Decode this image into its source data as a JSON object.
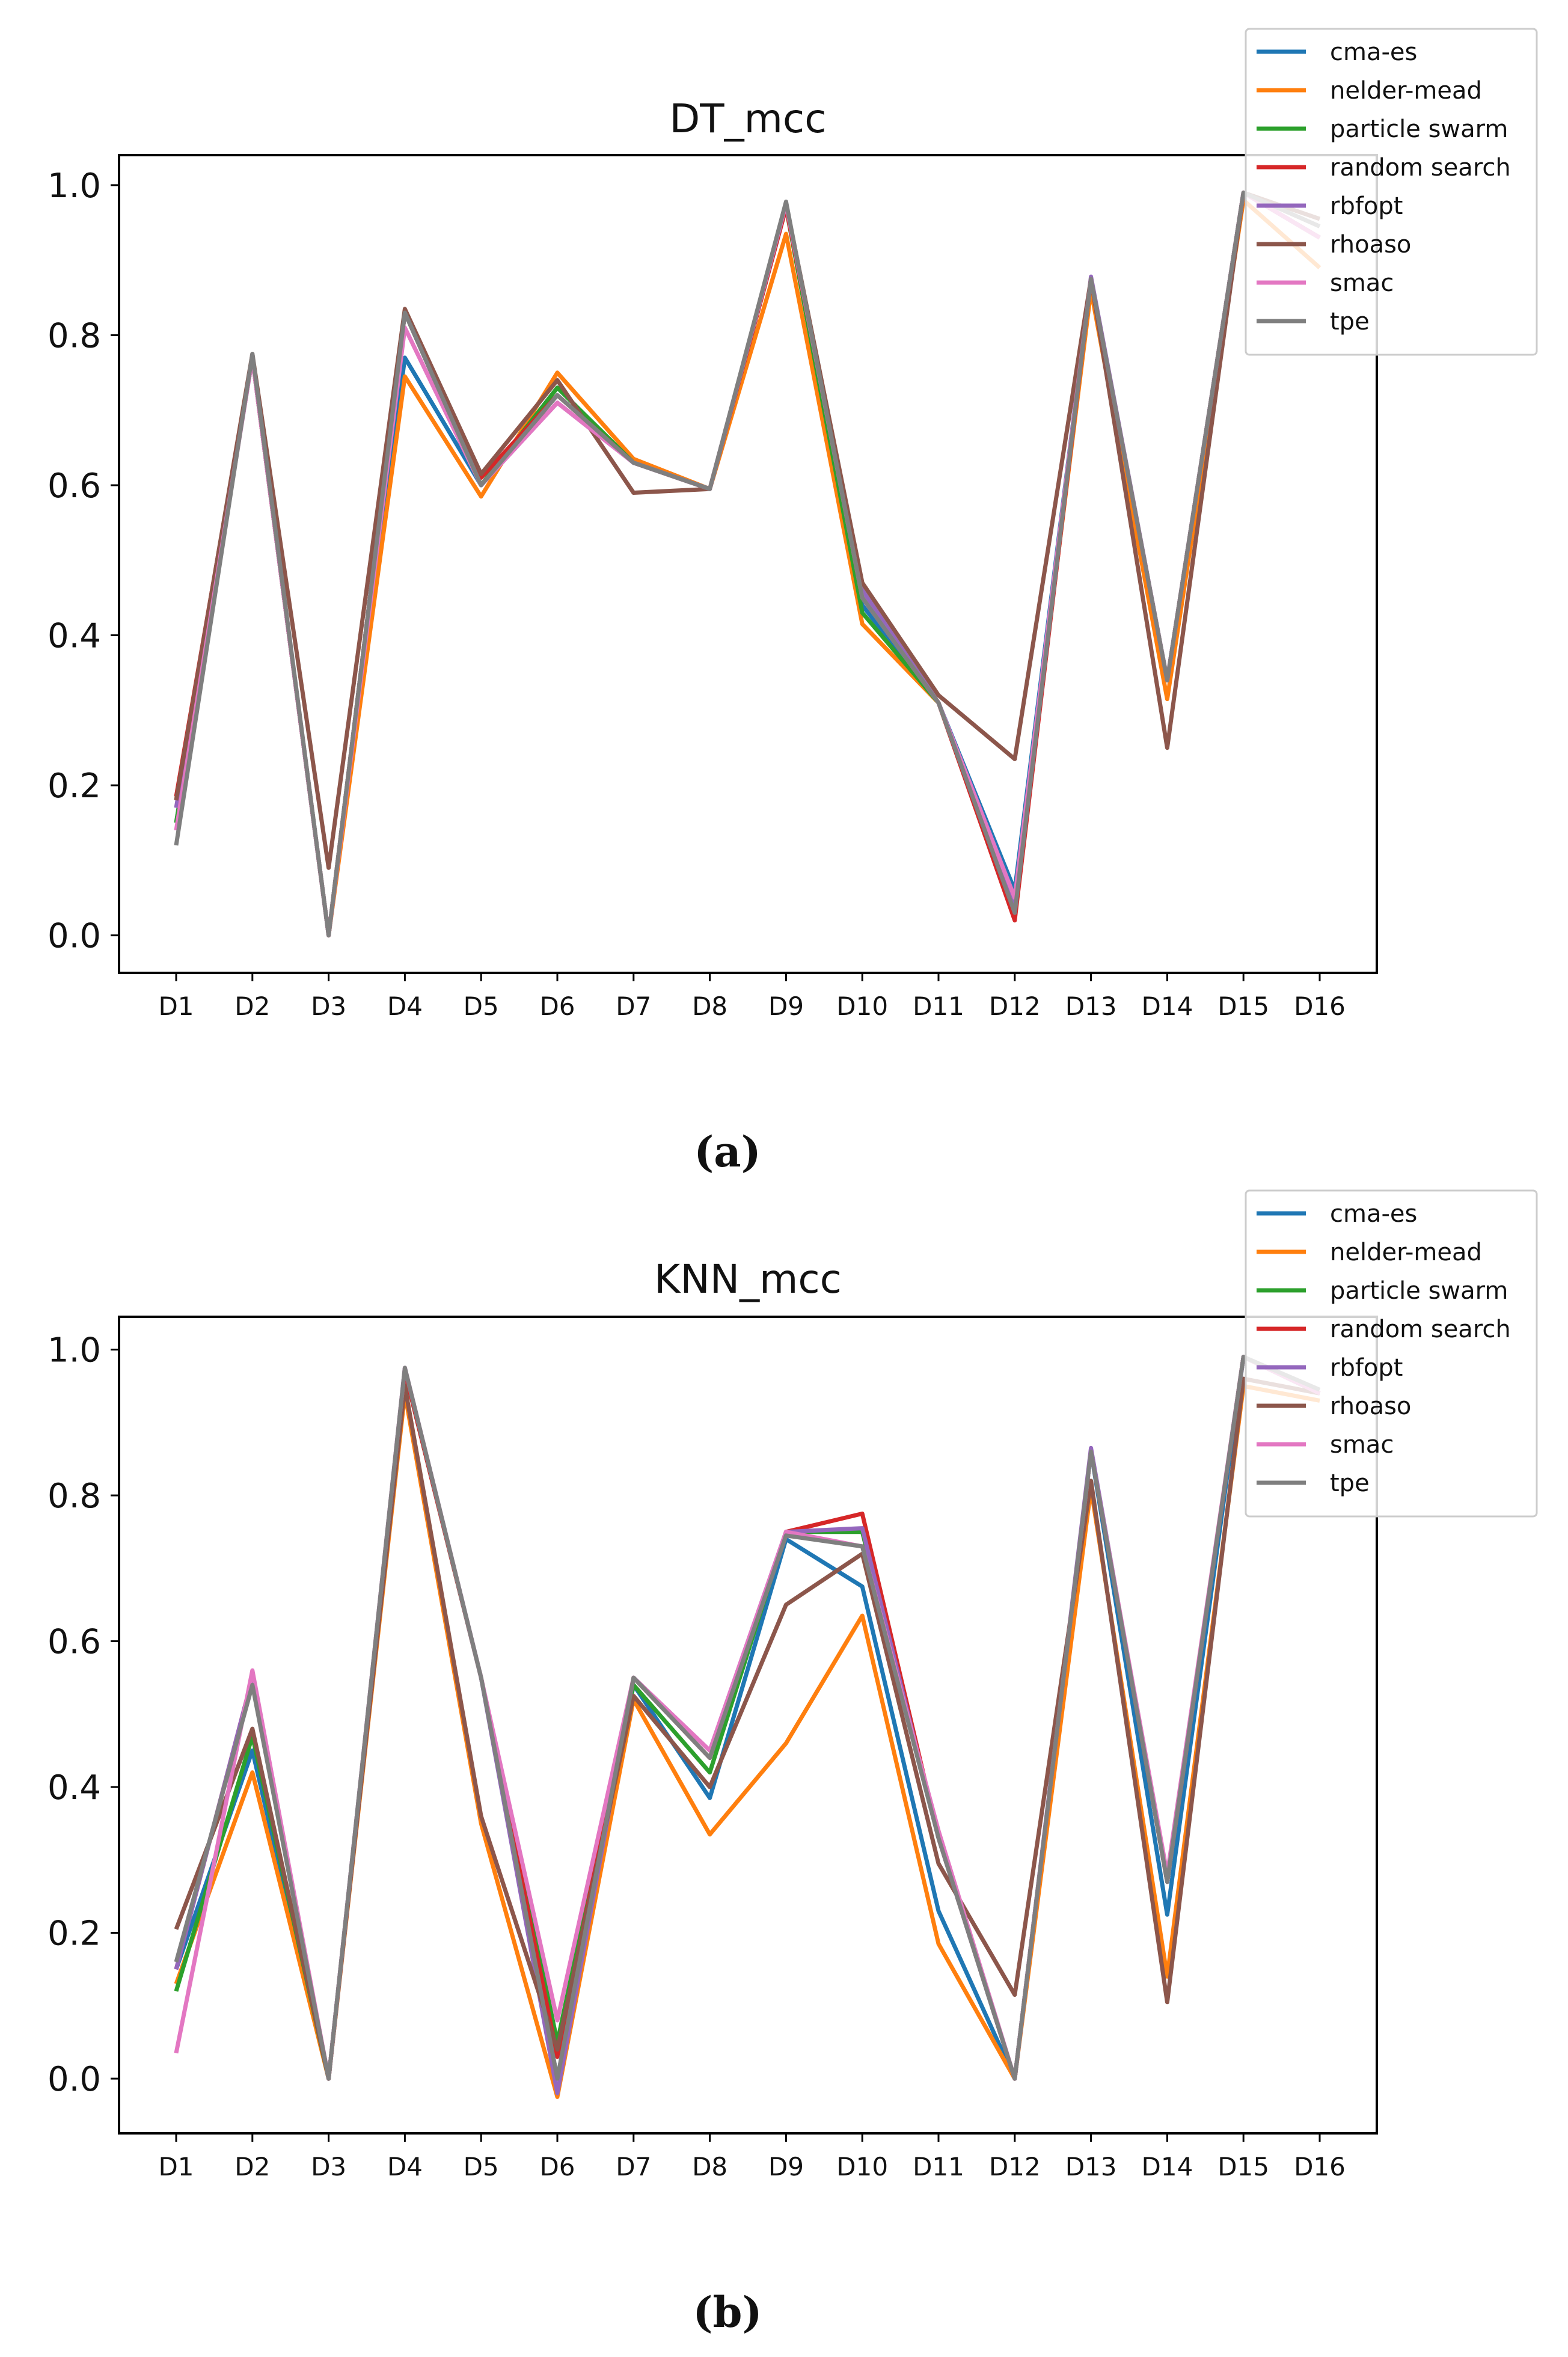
{
  "captions": [
    "(a)",
    "(b)"
  ],
  "legend": {
    "entries": [
      {
        "name": "cma-es",
        "color": "#1f77b4"
      },
      {
        "name": "nelder-mead",
        "color": "#ff7f0e"
      },
      {
        "name": "particle swarm",
        "color": "#2ca02c"
      },
      {
        "name": "random search",
        "color": "#d62728"
      },
      {
        "name": "rbfopt",
        "color": "#9467bd"
      },
      {
        "name": "rhoaso",
        "color": "#8c564b"
      },
      {
        "name": "smac",
        "color": "#e377c2"
      },
      {
        "name": "tpe",
        "color": "#7f7f7f"
      }
    ]
  },
  "chart_data": [
    {
      "type": "line",
      "title": "DT_mcc",
      "xlabel": "",
      "ylabel": "",
      "categories": [
        "D1",
        "D2",
        "D3",
        "D4",
        "D5",
        "D6",
        "D7",
        "D8",
        "D9",
        "D10",
        "D11",
        "D12",
        "D13",
        "D14",
        "D15",
        "D16"
      ],
      "ylim": [
        -0.05,
        1.04
      ],
      "yticks": [
        0.0,
        0.2,
        0.4,
        0.6,
        0.8,
        1.0
      ],
      "ytick_labels": [
        "0.0",
        "0.2",
        "0.4",
        "0.6",
        "0.8",
        "1.0"
      ],
      "grid": false,
      "legend_position": "top-right",
      "series": [
        {
          "name": "cma-es",
          "values": [
            0.15,
            0.77,
            0.0,
            0.77,
            0.6,
            0.73,
            0.63,
            0.595,
            0.975,
            0.44,
            0.31,
            0.06,
            0.875,
            0.34,
            0.99,
            0.93
          ]
        },
        {
          "name": "nelder-mead",
          "values": [
            0.18,
            0.77,
            0.0,
            0.745,
            0.585,
            0.75,
            0.635,
            0.595,
            0.935,
            0.415,
            0.31,
            0.04,
            0.86,
            0.315,
            0.98,
            0.89
          ]
        },
        {
          "name": "particle swarm",
          "values": [
            0.15,
            0.77,
            0.0,
            0.83,
            0.6,
            0.73,
            0.63,
            0.595,
            0.97,
            0.43,
            0.31,
            0.04,
            0.875,
            0.34,
            0.99,
            0.93
          ]
        },
        {
          "name": "random search",
          "values": [
            0.185,
            0.77,
            0.0,
            0.83,
            0.61,
            0.72,
            0.63,
            0.595,
            0.97,
            0.46,
            0.31,
            0.02,
            0.875,
            0.34,
            0.99,
            0.93
          ]
        },
        {
          "name": "rbfopt",
          "values": [
            0.17,
            0.77,
            0.0,
            0.83,
            0.6,
            0.71,
            0.63,
            0.595,
            0.975,
            0.46,
            0.31,
            0.04,
            0.878,
            0.34,
            0.99,
            0.93
          ]
        },
        {
          "name": "rhoaso",
          "values": [
            0.18,
            0.775,
            0.09,
            0.835,
            0.615,
            0.74,
            0.59,
            0.595,
            0.975,
            0.47,
            0.32,
            0.235,
            0.875,
            0.25,
            0.99,
            0.955
          ]
        },
        {
          "name": "smac",
          "values": [
            0.14,
            0.77,
            0.0,
            0.81,
            0.6,
            0.71,
            0.63,
            0.595,
            0.975,
            0.45,
            0.31,
            0.05,
            0.875,
            0.34,
            0.99,
            0.93
          ]
        },
        {
          "name": "tpe",
          "values": [
            0.12,
            0.775,
            0.0,
            0.83,
            0.6,
            0.72,
            0.63,
            0.595,
            0.978,
            0.45,
            0.31,
            0.03,
            0.875,
            0.34,
            0.99,
            0.945
          ]
        }
      ]
    },
    {
      "type": "line",
      "title": "KNN_mcc",
      "xlabel": "",
      "ylabel": "",
      "categories": [
        "D1",
        "D2",
        "D3",
        "D4",
        "D5",
        "D6",
        "D7",
        "D8",
        "D9",
        "D10",
        "D11",
        "D12",
        "D13",
        "D14",
        "D15",
        "D16"
      ],
      "ylim": [
        -0.075,
        1.045
      ],
      "yticks": [
        0.0,
        0.2,
        0.4,
        0.6,
        0.8,
        1.0
      ],
      "ytick_labels": [
        "0.0",
        "0.2",
        "0.4",
        "0.6",
        "0.8",
        "1.0"
      ],
      "grid": false,
      "legend_position": "top-right",
      "series": [
        {
          "name": "cma-es",
          "values": [
            0.15,
            0.45,
            0.0,
            0.97,
            0.55,
            0.0,
            0.54,
            0.385,
            0.74,
            0.675,
            0.23,
            0.0,
            0.86,
            0.225,
            0.99,
            0.94
          ]
        },
        {
          "name": "nelder-mead",
          "values": [
            0.13,
            0.42,
            0.0,
            0.94,
            0.35,
            -0.025,
            0.52,
            0.335,
            0.46,
            0.635,
            0.185,
            0.0,
            0.81,
            0.14,
            0.95,
            0.93
          ]
        },
        {
          "name": "particle swarm",
          "values": [
            0.12,
            0.47,
            0.0,
            0.97,
            0.55,
            0.05,
            0.54,
            0.42,
            0.75,
            0.75,
            0.33,
            0.0,
            0.86,
            0.27,
            0.99,
            0.94
          ]
        },
        {
          "name": "random search",
          "values": [
            0.15,
            0.55,
            0.0,
            0.97,
            0.55,
            0.03,
            0.55,
            0.44,
            0.75,
            0.775,
            0.33,
            0.0,
            0.86,
            0.27,
            0.99,
            0.94
          ]
        },
        {
          "name": "rbfopt",
          "values": [
            0.15,
            0.55,
            0.0,
            0.975,
            0.55,
            -0.02,
            0.55,
            0.45,
            0.75,
            0.755,
            0.33,
            0.0,
            0.865,
            0.27,
            0.99,
            0.94
          ]
        },
        {
          "name": "rhoaso",
          "values": [
            0.205,
            0.48,
            0.0,
            0.95,
            0.36,
            0.04,
            0.525,
            0.4,
            0.65,
            0.72,
            0.295,
            0.115,
            0.82,
            0.105,
            0.96,
            0.94
          ]
        },
        {
          "name": "smac",
          "values": [
            0.035,
            0.56,
            0.0,
            0.975,
            0.55,
            0.08,
            0.55,
            0.45,
            0.75,
            0.73,
            0.34,
            0.0,
            0.86,
            0.28,
            0.99,
            0.94
          ]
        },
        {
          "name": "tpe",
          "values": [
            0.16,
            0.54,
            0.0,
            0.975,
            0.55,
            0.0,
            0.55,
            0.44,
            0.745,
            0.73,
            0.33,
            0.0,
            0.86,
            0.27,
            0.99,
            0.945
          ]
        }
      ]
    }
  ]
}
